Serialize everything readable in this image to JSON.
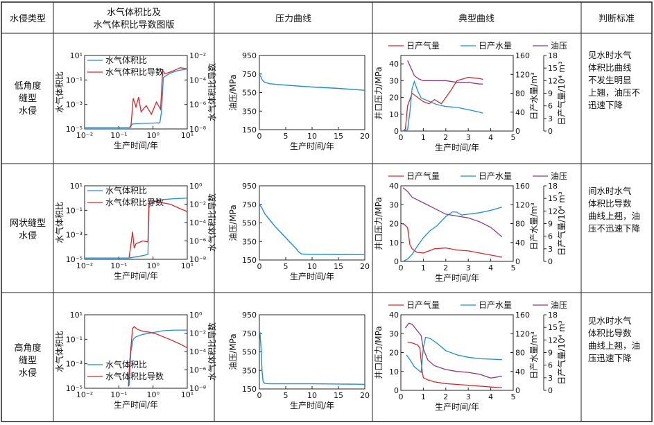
{
  "header": {
    "col1": "水侵类型",
    "col2_line1": "水气体积比及",
    "col2_line2": "水气体积比导数图版",
    "col3": "压力曲线",
    "col4": "典型曲线",
    "col5": "判断标准"
  },
  "rows": [
    {
      "type_lines": [
        "低角度",
        "缝型",
        "水侵"
      ],
      "standard_lines": [
        "见水时水气",
        "体积比曲线",
        "不发生明显",
        "上翘，油压不",
        "迅速下降"
      ]
    },
    {
      "type_lines": [
        "网状缝型",
        "水侵"
      ],
      "standard_lines": [
        "间水时水气",
        "体积比导数",
        "曲线上翘，油",
        "压不迅速下降"
      ]
    },
    {
      "type_lines": [
        "高角度",
        "缝型",
        "水侵"
      ],
      "standard_lines": [
        "见水时水气",
        "体积比导数",
        "曲线上翘，油",
        "压迅速下降"
      ]
    }
  ],
  "labels": {
    "legend_ratio": "水气体积比",
    "legend_deriv": "水气体积比导数",
    "y_ratio": "水气体积比",
    "y_deriv": "水气体积比导数",
    "x_time": "生产时间/年",
    "y_oilp": "油压/MPa",
    "legend_gas": "日产气量",
    "legend_water": "日产水量",
    "legend_oilp": "油压",
    "y_wellhead": "井口压力/MPa",
    "y_water": "日产水量/m³",
    "y_gas": "日产气量/10⁴ m³"
  },
  "colors": {
    "ratio": "#1a8fd1",
    "deriv": "#d9262c",
    "gas": "#d9262c",
    "water": "#1a8fd1",
    "oilp": "#8e3a7f"
  },
  "chart_data": [
    {
      "type": "line",
      "title": "低角度缝型水侵 水气体积比及导数",
      "xlabel": "生产时间/年",
      "xscale": "log",
      "xlim": [
        0.01,
        10
      ],
      "xticks": [
        "10⁻²",
        "10⁻¹",
        "10⁰",
        "10¹"
      ],
      "ylabel": "水气体积比",
      "ylim_exp": [
        -5,
        1
      ],
      "yticks": [
        "10⁻⁵",
        "10⁻³",
        "10⁻¹",
        "10¹"
      ],
      "y2label": "水气体积比导数",
      "y2lim_exp": [
        -8,
        -2
      ],
      "y2ticks": [
        "10⁻⁸",
        "10⁻⁶",
        "10⁻⁴",
        "10⁻²"
      ],
      "legend": "top-right",
      "series": [
        {
          "name": "水气体积比",
          "axis": "left",
          "log_x": [
            -2,
            -0.7,
            -0.6,
            -0.4,
            0.2,
            0.25,
            0.3,
            0.5,
            0.7,
            1.0
          ],
          "log_y": [
            -4.9,
            -4.9,
            -4.6,
            -4.55,
            -4.5,
            -3.5,
            -0.8,
            -0.45,
            -0.25,
            -0.1
          ]
        },
        {
          "name": "水气体积比导数",
          "axis": "right",
          "log_x": [
            -0.65,
            -0.58,
            -0.5,
            -0.42,
            -0.35,
            -0.2,
            -0.05,
            0.1,
            0.22,
            0.28,
            0.35,
            0.55,
            0.8,
            1.0
          ],
          "log_y": [
            -7.9,
            -5.5,
            -6.2,
            -5.4,
            -6.6,
            -6.1,
            -6.8,
            -5.8,
            -6.4,
            -3.2,
            -3.5,
            -3.3,
            -3.0,
            -3.1
          ]
        }
      ]
    },
    {
      "type": "line",
      "title": "低角度缝型水侵 压力曲线",
      "xlabel": "生产时间/年",
      "xlim": [
        0,
        20
      ],
      "xticks": [
        0,
        5,
        10,
        15,
        20
      ],
      "ylabel": "油压/MPa",
      "ylim": [
        150,
        950
      ],
      "yticks": [
        150,
        350,
        550,
        750,
        950
      ],
      "series": [
        {
          "name": "油压",
          "x": [
            0,
            0.2,
            0.5,
            1,
            2,
            5,
            10,
            15,
            20
          ],
          "y": [
            740,
            730,
            690,
            660,
            645,
            630,
            610,
            595,
            575
          ]
        }
      ]
    },
    {
      "type": "line",
      "title": "低角度缝型水侵 典型曲线",
      "xlabel": "生产时间/年",
      "xlim": [
        0,
        5
      ],
      "xticks": [
        0,
        1,
        2,
        3,
        4,
        5
      ],
      "ylabel": "井口压力/MPa",
      "ylim": [
        0,
        45
      ],
      "yticks": [
        0,
        10,
        20,
        30,
        40
      ],
      "y2label": "日产水量/m³",
      "y2lim": [
        0,
        160
      ],
      "y2ticks": [
        0,
        40,
        80,
        120,
        160
      ],
      "y3label": "日产气量/10⁴ m³",
      "y3lim": [
        0,
        18
      ],
      "y3ticks": [
        0,
        3,
        6,
        9,
        12,
        15,
        18
      ],
      "legend": "top",
      "series": [
        {
          "name": "日产气量",
          "axis": "y3",
          "x": [
            0.1,
            0.2,
            0.3,
            0.5,
            0.75,
            1.0,
            1.25,
            1.5,
            1.8,
            2.2,
            2.5,
            3.0,
            3.5,
            3.65
          ],
          "y": [
            0,
            0.5,
            6,
            9,
            8,
            7,
            6.5,
            7.5,
            6.5,
            9.5,
            12,
            12.8,
            12.5,
            12.3
          ]
        },
        {
          "name": "日产水量",
          "axis": "y2",
          "x": [
            0.1,
            0.3,
            0.4,
            0.5,
            0.6,
            0.75,
            0.9,
            1.2,
            1.6,
            2.0,
            2.5,
            3.0,
            3.5,
            3.65
          ],
          "y": [
            0,
            3,
            40,
            90,
            105,
            85,
            70,
            64,
            56,
            52,
            50,
            45,
            40,
            38
          ]
        },
        {
          "name": "油压",
          "axis": "y1",
          "x": [
            0.3,
            0.5,
            0.6,
            0.8,
            1.0,
            1.5,
            2.0,
            2.5,
            3.0,
            3.5,
            3.65
          ],
          "y": [
            42,
            36,
            33,
            31,
            30,
            30,
            30,
            29,
            29,
            28,
            28
          ]
        }
      ]
    },
    {
      "type": "line",
      "title": "网状缝型水侵 水气体积比及导数",
      "xlabel": "生产时间/年",
      "xscale": "log",
      "xlim": [
        0.01,
        10
      ],
      "xticks": [
        "10⁻²",
        "10⁻¹",
        "10⁰",
        "10¹"
      ],
      "ylabel": "水气体积比",
      "ylim_exp": [
        -5,
        1
      ],
      "yticks": [
        "10⁻⁵",
        "10⁻³",
        "10⁻¹",
        "10¹"
      ],
      "y2label": "水气体积比导数",
      "y2lim_exp": [
        -8,
        0
      ],
      "y2ticks": [
        "10⁻⁸",
        "10⁻⁶",
        "10⁻⁴",
        "10⁻²",
        "10⁰"
      ],
      "legend": "top-right",
      "series": [
        {
          "name": "水气体积比",
          "axis": "left",
          "log_x": [
            -2,
            -0.7,
            -0.3,
            -0.15,
            -0.12,
            -0.05,
            0.1,
            0.3,
            0.6,
            1.0
          ],
          "log_y": [
            -4.9,
            -4.9,
            -4.7,
            -4.6,
            -0.8,
            -0.4,
            -0.25,
            -0.12,
            -0.05,
            0.0
          ]
        },
        {
          "name": "水气体积比导数",
          "axis": "right",
          "log_x": [
            -0.7,
            -0.65,
            -0.6,
            -0.55,
            -0.5,
            -0.3,
            -0.15,
            -0.12,
            -0.08,
            0.0,
            0.2,
            0.5,
            0.8,
            1.0
          ],
          "log_y": [
            -7.8,
            -6.5,
            -5.0,
            -6.8,
            -6.3,
            -6.0,
            -6.1,
            -2.0,
            -1.5,
            -1.6,
            -1.8,
            -2.0,
            -2.5,
            -2.8
          ]
        }
      ]
    },
    {
      "type": "line",
      "title": "网状缝型水侵 压力曲线",
      "xlabel": "生产时间/年",
      "xlim": [
        0,
        20
      ],
      "xticks": [
        0,
        5,
        10,
        15,
        20
      ],
      "ylabel": "油压/MPa",
      "ylim": [
        150,
        950
      ],
      "yticks": [
        150,
        350,
        550,
        750,
        950
      ],
      "series": [
        {
          "name": "油压",
          "x": [
            0,
            0.5,
            1,
            2,
            3,
            4,
            5,
            6,
            7,
            7.5,
            8,
            9,
            10,
            15,
            20
          ],
          "y": [
            750,
            710,
            650,
            580,
            510,
            450,
            390,
            330,
            270,
            235,
            215,
            212,
            212,
            210,
            207
          ]
        }
      ]
    },
    {
      "type": "line",
      "title": "网状缝型水侵 典型曲线",
      "xlabel": "生产时间/年",
      "xlim": [
        0,
        5
      ],
      "xticks": [
        0,
        1,
        2,
        3,
        4,
        5
      ],
      "ylabel": "井口压力/MPa",
      "ylim": [
        0,
        40
      ],
      "yticks": [
        0,
        10,
        20,
        30,
        40
      ],
      "y2label": "日产水量/m³",
      "y2lim": [
        0,
        160
      ],
      "y2ticks": [
        0,
        40,
        80,
        120,
        160
      ],
      "y3label": "日产气量/10⁴ m³",
      "y3lim": [
        0,
        18
      ],
      "y3ticks": [
        0,
        3,
        6,
        9,
        12,
        15,
        18
      ],
      "legend": "top",
      "series": [
        {
          "name": "日产气量",
          "axis": "y3",
          "x": [
            0.05,
            0.15,
            0.3,
            0.4,
            0.5,
            0.7,
            1.0,
            1.5,
            2.0,
            2.5,
            3.0,
            3.5,
            4.0,
            4.5
          ],
          "y": [
            9,
            8.8,
            8,
            4,
            3,
            2.2,
            2.0,
            3.0,
            3.2,
            2.7,
            2.5,
            2.0,
            1.5,
            1.0
          ]
        },
        {
          "name": "日产水量",
          "axis": "y2",
          "x": [
            0.1,
            0.3,
            0.5,
            0.7,
            1.0,
            1.3,
            1.6,
            2.0,
            2.3,
            2.5,
            2.7,
            3.0,
            3.5,
            4.0,
            4.5
          ],
          "y": [
            0,
            5,
            15,
            30,
            50,
            65,
            75,
            95,
            105,
            104,
            98,
            100,
            103,
            108,
            115
          ]
        },
        {
          "name": "油压",
          "axis": "y1",
          "x": [
            0.1,
            0.3,
            0.5,
            1.0,
            1.5,
            2.0,
            2.5,
            3.0,
            3.5,
            4.0,
            4.5
          ],
          "y": [
            39,
            37,
            34,
            31,
            28,
            25,
            24,
            23,
            21,
            18,
            13
          ]
        }
      ]
    },
    {
      "type": "line",
      "title": "高角度缝型水侵 水气体积比及导数",
      "xlabel": "生产时间/年",
      "xscale": "log",
      "xlim": [
        0.01,
        10
      ],
      "xticks": [
        "10⁻²",
        "10⁻¹",
        "10⁰",
        "10¹"
      ],
      "ylabel": "水气体积比",
      "ylim_exp": [
        -5,
        1
      ],
      "yticks": [
        "10⁻⁵",
        "10⁻³",
        "10⁻¹",
        "10¹"
      ],
      "y2label": "水气体积比导数",
      "y2lim_exp": [
        -8,
        0
      ],
      "y2ticks": [
        "10⁻⁸",
        "10⁻⁶",
        "10⁻⁴",
        "10⁻²",
        "10⁰"
      ],
      "legend": "bottom-left",
      "series": [
        {
          "name": "水气体积比",
          "axis": "left",
          "log_x": [
            -0.7,
            -0.65,
            -0.58,
            -0.5,
            -0.3,
            0.0,
            0.3,
            0.6,
            1.0
          ],
          "log_y": [
            -4.8,
            -2.0,
            -1.0,
            -0.8,
            -0.6,
            -0.45,
            -0.3,
            -0.25,
            -0.25
          ]
        },
        {
          "name": "水气体积比导数",
          "axis": "right",
          "log_x": [
            -0.72,
            -0.68,
            -0.6,
            -0.55,
            -0.45,
            -0.3,
            -0.1,
            0.1,
            0.3,
            0.5,
            0.8,
            1.0
          ],
          "log_y": [
            -7.8,
            -5.0,
            -1.5,
            -1.3,
            -1.6,
            -1.8,
            -1.9,
            -2.1,
            -2.4,
            -2.7,
            -3.2,
            -3.6
          ]
        }
      ]
    },
    {
      "type": "line",
      "title": "高角度缝型水侵 压力曲线",
      "xlabel": "生产时间/年",
      "xlim": [
        0,
        20
      ],
      "xticks": [
        0,
        5,
        10,
        15,
        20
      ],
      "ylabel": "油压/MPa",
      "ylim": [
        150,
        950
      ],
      "yticks": [
        150,
        350,
        550,
        750,
        950
      ],
      "series": [
        {
          "name": "油压",
          "x": [
            0,
            0.1,
            0.3,
            0.5,
            0.7,
            1.0,
            2.0,
            5,
            10,
            15,
            20
          ],
          "y": [
            780,
            760,
            600,
            350,
            230,
            210,
            205,
            205,
            205,
            203,
            200
          ]
        }
      ]
    },
    {
      "type": "line",
      "title": "高角度缝型水侵 典型曲线",
      "xlabel": "生产时间/年",
      "xlim": [
        0,
        5
      ],
      "xticks": [
        0,
        1,
        2,
        3,
        4,
        5
      ],
      "ylabel": "井口压力/MPa",
      "ylim": [
        0,
        40
      ],
      "yticks": [
        0,
        10,
        20,
        30,
        40
      ],
      "y2label": "日产水量/m³",
      "y2lim": [
        0,
        160
      ],
      "y2ticks": [
        0,
        40,
        80,
        120,
        160
      ],
      "y3label": "日产气量/10⁴ m³",
      "y3lim": [
        0,
        18
      ],
      "y3ticks": [
        0,
        3,
        6,
        9,
        12,
        15,
        18
      ],
      "legend": "top",
      "series": [
        {
          "name": "日产气量",
          "axis": "y3",
          "x": [
            0.3,
            0.5,
            0.75,
            0.85,
            0.9,
            0.95,
            1.0,
            1.2,
            1.5,
            2.0,
            2.5,
            3.0,
            3.5,
            4.0,
            4.5
          ],
          "y": [
            11.5,
            11.3,
            10.8,
            10,
            7,
            4.5,
            3.0,
            2.5,
            2.0,
            1.6,
            1.4,
            1.2,
            1.0,
            0.8,
            0.6
          ]
        },
        {
          "name": "日产水量",
          "axis": "y2",
          "x": [
            0.25,
            0.4,
            0.6,
            0.8,
            0.9,
            1.0,
            1.1,
            1.3,
            1.6,
            2.0,
            2.5,
            3.0,
            3.5,
            4.0,
            4.5
          ],
          "y": [
            75,
            65,
            50,
            42,
            38,
            90,
            112,
            110,
            100,
            84,
            75,
            70,
            67,
            66,
            65
          ]
        },
        {
          "name": "油压",
          "axis": "y1",
          "x": [
            0.2,
            0.35,
            0.5,
            0.7,
            0.9,
            1.0,
            1.2,
            1.5,
            2.0,
            2.5,
            3.0,
            3.5,
            4.0,
            4.5
          ],
          "y": [
            33,
            35.5,
            35,
            32,
            29,
            22,
            16,
            13,
            11,
            10,
            9.5,
            8.5,
            6.5,
            7.5
          ]
        }
      ]
    }
  ]
}
